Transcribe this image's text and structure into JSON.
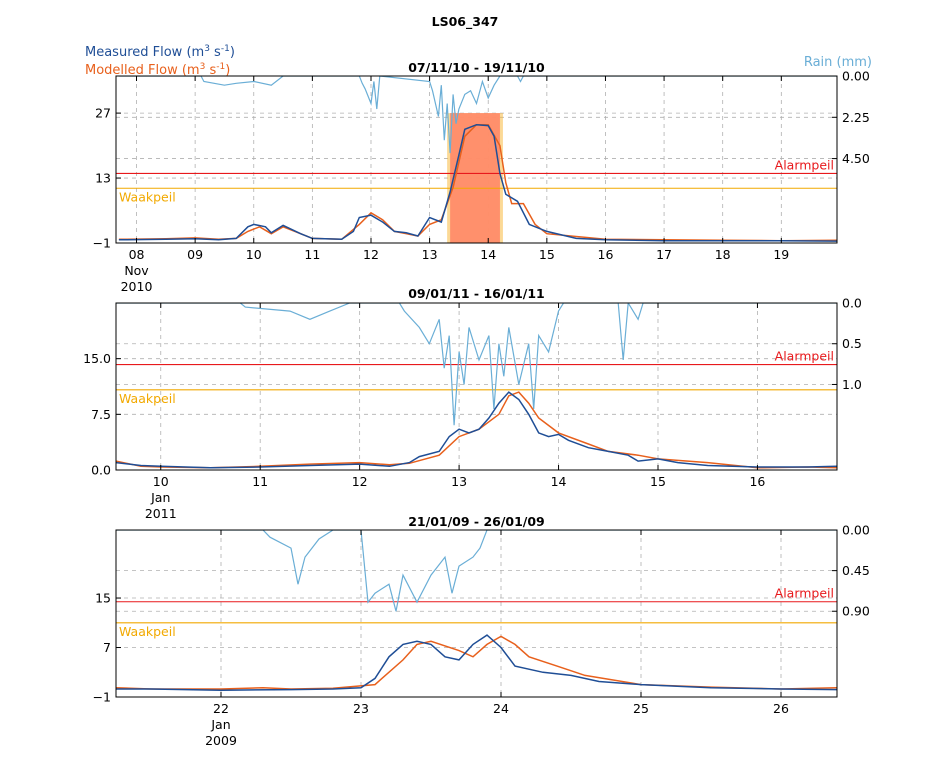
{
  "figure": {
    "title": "LS06_347",
    "legend": {
      "measured_prefix": "Measured Flow (m",
      "modelled_prefix": "Modelled Flow (m",
      "unit_mid": " s",
      "sup3": "3",
      "supneg1": "-1",
      "unit_end": ")",
      "rain": "Rain (mm)"
    },
    "colors": {
      "measured": "#1f4e96",
      "modelled": "#e8601c",
      "rain": "#6aaed6",
      "alarm": "#e8191c",
      "waak": "#f2a900",
      "event_fill": "#ff8c69",
      "event_edge": "#f7b940"
    }
  },
  "chart_data": [
    {
      "type": "line",
      "title": "07/11/10 - 19/11/10",
      "x_domain": [
        7.65,
        19.95
      ],
      "x_ticks": [
        {
          "v": 8,
          "l": "08"
        },
        {
          "v": 9,
          "l": "09"
        },
        {
          "v": 10,
          "l": "10"
        },
        {
          "v": 11,
          "l": "11"
        },
        {
          "v": 12,
          "l": "12"
        },
        {
          "v": 13,
          "l": "13"
        },
        {
          "v": 14,
          "l": "14"
        },
        {
          "v": 15,
          "l": "15"
        },
        {
          "v": 16,
          "l": "16"
        },
        {
          "v": 17,
          "l": "17"
        },
        {
          "v": 18,
          "l": "18"
        },
        {
          "v": 19,
          "l": "19"
        }
      ],
      "date_sub": [
        "Nov",
        "2010"
      ],
      "y_range": [
        -1,
        35
      ],
      "y_ticks": [
        -1,
        13,
        27
      ],
      "y_tick_labels": [
        "−1",
        "13",
        "27"
      ],
      "rain_range": [
        0,
        9.1
      ],
      "rain_ticks": [
        0,
        2.25,
        4.5
      ],
      "rain_tick_labels": [
        "0.00",
        "2.25",
        "4.50"
      ],
      "alarm": 14,
      "alarm_label": "Alarmpeil",
      "waak": 10.8,
      "waak_label": "Waakpeil",
      "event_band": [
        13.35,
        14.2
      ],
      "measured": [
        [
          7.7,
          -0.3
        ],
        [
          8.5,
          -0.2
        ],
        [
          9.0,
          -0.1
        ],
        [
          9.4,
          -0.3
        ],
        [
          9.7,
          0.0
        ],
        [
          9.9,
          2.5
        ],
        [
          10.0,
          3.0
        ],
        [
          10.2,
          2.5
        ],
        [
          10.3,
          1.2
        ],
        [
          10.5,
          2.8
        ],
        [
          10.8,
          1.0
        ],
        [
          11.0,
          0.0
        ],
        [
          11.5,
          -0.2
        ],
        [
          11.7,
          1.5
        ],
        [
          11.8,
          4.5
        ],
        [
          12.0,
          5.0
        ],
        [
          12.2,
          3.5
        ],
        [
          12.4,
          1.5
        ],
        [
          12.6,
          1.2
        ],
        [
          12.8,
          0.5
        ],
        [
          13.0,
          4.5
        ],
        [
          13.2,
          3.5
        ],
        [
          13.35,
          10.0
        ],
        [
          13.5,
          18.0
        ],
        [
          13.6,
          23.5
        ],
        [
          13.8,
          24.5
        ],
        [
          14.0,
          24.3
        ],
        [
          14.1,
          22.0
        ],
        [
          14.2,
          14.0
        ],
        [
          14.3,
          9.5
        ],
        [
          14.5,
          8.0
        ],
        [
          14.7,
          3.0
        ],
        [
          15.0,
          1.5
        ],
        [
          15.5,
          0.0
        ],
        [
          16.0,
          -0.3
        ],
        [
          17.0,
          -0.5
        ],
        [
          18.0,
          -0.5
        ],
        [
          19.0,
          -0.5
        ],
        [
          19.95,
          -0.6
        ]
      ],
      "modelled": [
        [
          7.7,
          -0.2
        ],
        [
          8.5,
          -0.1
        ],
        [
          9.0,
          0.1
        ],
        [
          9.4,
          -0.2
        ],
        [
          9.7,
          0.0
        ],
        [
          9.9,
          1.5
        ],
        [
          10.1,
          2.5
        ],
        [
          10.3,
          1.0
        ],
        [
          10.5,
          2.5
        ],
        [
          10.8,
          1.0
        ],
        [
          11.0,
          0.0
        ],
        [
          11.5,
          -0.2
        ],
        [
          11.8,
          3.0
        ],
        [
          12.0,
          5.5
        ],
        [
          12.2,
          4.0
        ],
        [
          12.4,
          1.5
        ],
        [
          12.6,
          1.0
        ],
        [
          12.8,
          0.5
        ],
        [
          13.0,
          3.0
        ],
        [
          13.2,
          4.0
        ],
        [
          13.4,
          11.0
        ],
        [
          13.6,
          22.0
        ],
        [
          13.8,
          24.5
        ],
        [
          14.0,
          24.5
        ],
        [
          14.2,
          20.0
        ],
        [
          14.3,
          12.0
        ],
        [
          14.4,
          7.5
        ],
        [
          14.6,
          7.5
        ],
        [
          14.8,
          3.0
        ],
        [
          15.0,
          1.0
        ],
        [
          16.0,
          -0.2
        ],
        [
          17.0,
          -0.3
        ],
        [
          18.0,
          -0.4
        ],
        [
          19.0,
          -0.5
        ],
        [
          19.95,
          -0.4
        ]
      ],
      "rain": [
        [
          7.7,
          0
        ],
        [
          9.1,
          0
        ],
        [
          9.15,
          0.3
        ],
        [
          9.5,
          0.5
        ],
        [
          9.7,
          0.4
        ],
        [
          10.0,
          0.3
        ],
        [
          10.3,
          0.5
        ],
        [
          10.5,
          0
        ],
        [
          11.8,
          0
        ],
        [
          11.85,
          0.4
        ],
        [
          11.9,
          0.7
        ],
        [
          12.0,
          1.5
        ],
        [
          12.05,
          0.3
        ],
        [
          12.1,
          1.8
        ],
        [
          12.15,
          0
        ],
        [
          13.0,
          0.3
        ],
        [
          13.05,
          0.8
        ],
        [
          13.15,
          2.2
        ],
        [
          13.2,
          0.5
        ],
        [
          13.25,
          3.5
        ],
        [
          13.3,
          1.5
        ],
        [
          13.35,
          4.2
        ],
        [
          13.4,
          1.0
        ],
        [
          13.45,
          2.6
        ],
        [
          13.5,
          1.8
        ],
        [
          13.6,
          1.0
        ],
        [
          13.7,
          0.8
        ],
        [
          13.8,
          1.5
        ],
        [
          13.9,
          0.3
        ],
        [
          14.0,
          1.2
        ],
        [
          14.1,
          0.5
        ],
        [
          14.2,
          0
        ],
        [
          14.5,
          0
        ],
        [
          14.55,
          0.3
        ],
        [
          14.6,
          0
        ],
        [
          19.95,
          0
        ]
      ]
    },
    {
      "type": "line",
      "title": "09/01/11 - 16/01/11",
      "x_domain": [
        9.55,
        16.8
      ],
      "x_ticks": [
        {
          "v": 10,
          "l": "10"
        },
        {
          "v": 11,
          "l": "11"
        },
        {
          "v": 12,
          "l": "12"
        },
        {
          "v": 13,
          "l": "13"
        },
        {
          "v": 14,
          "l": "14"
        },
        {
          "v": 15,
          "l": "15"
        },
        {
          "v": 16,
          "l": "16"
        }
      ],
      "date_sub": [
        "Jan",
        "2011"
      ],
      "y_range": [
        0,
        22.5
      ],
      "y_ticks": [
        0,
        7.5,
        15
      ],
      "y_tick_labels": [
        "0.0",
        "7.5",
        "15.0"
      ],
      "rain_range": [
        0,
        2.05
      ],
      "rain_ticks": [
        0,
        0.5,
        1.0
      ],
      "rain_tick_labels": [
        "0.0",
        "0.5",
        "1.0"
      ],
      "alarm": 14.2,
      "alarm_label": "Alarmpeil",
      "waak": 10.8,
      "waak_label": "Waakpeil",
      "measured": [
        [
          9.55,
          1.0
        ],
        [
          9.8,
          0.6
        ],
        [
          10.0,
          0.5
        ],
        [
          10.5,
          0.3
        ],
        [
          11.0,
          0.4
        ],
        [
          11.5,
          0.6
        ],
        [
          12.0,
          0.8
        ],
        [
          12.3,
          0.5
        ],
        [
          12.5,
          1.0
        ],
        [
          12.6,
          1.8
        ],
        [
          12.8,
          2.5
        ],
        [
          12.9,
          4.5
        ],
        [
          13.0,
          5.5
        ],
        [
          13.1,
          5.0
        ],
        [
          13.2,
          5.5
        ],
        [
          13.3,
          7.0
        ],
        [
          13.4,
          9.0
        ],
        [
          13.5,
          10.5
        ],
        [
          13.6,
          9.5
        ],
        [
          13.7,
          7.5
        ],
        [
          13.8,
          5.0
        ],
        [
          13.9,
          4.5
        ],
        [
          14.0,
          4.8
        ],
        [
          14.1,
          4.0
        ],
        [
          14.3,
          3.0
        ],
        [
          14.5,
          2.5
        ],
        [
          14.7,
          2.0
        ],
        [
          14.8,
          1.2
        ],
        [
          15.0,
          1.5
        ],
        [
          15.2,
          1.0
        ],
        [
          15.5,
          0.6
        ],
        [
          16.0,
          0.4
        ],
        [
          16.5,
          0.4
        ],
        [
          16.8,
          0.5
        ]
      ],
      "modelled": [
        [
          9.55,
          1.2
        ],
        [
          9.8,
          0.5
        ],
        [
          10.0,
          0.4
        ],
        [
          10.5,
          0.3
        ],
        [
          11.0,
          0.5
        ],
        [
          11.5,
          0.8
        ],
        [
          12.0,
          1.0
        ],
        [
          12.3,
          0.7
        ],
        [
          12.5,
          0.9
        ],
        [
          12.8,
          2.0
        ],
        [
          13.0,
          4.5
        ],
        [
          13.2,
          5.5
        ],
        [
          13.4,
          7.5
        ],
        [
          13.5,
          10.0
        ],
        [
          13.6,
          10.5
        ],
        [
          13.7,
          9.0
        ],
        [
          13.8,
          7.0
        ],
        [
          14.0,
          5.0
        ],
        [
          14.3,
          3.5
        ],
        [
          14.5,
          2.5
        ],
        [
          14.8,
          2.0
        ],
        [
          15.0,
          1.5
        ],
        [
          15.5,
          1.0
        ],
        [
          16.0,
          0.3
        ],
        [
          16.5,
          0.4
        ],
        [
          16.8,
          0.3
        ]
      ],
      "rain": [
        [
          9.55,
          0
        ],
        [
          10.8,
          0
        ],
        [
          10.85,
          0.05
        ],
        [
          11.3,
          0.1
        ],
        [
          11.5,
          0.2
        ],
        [
          11.7,
          0.1
        ],
        [
          11.9,
          0
        ],
        [
          12.4,
          0
        ],
        [
          12.45,
          0.1
        ],
        [
          12.6,
          0.3
        ],
        [
          12.7,
          0.5
        ],
        [
          12.8,
          0.2
        ],
        [
          12.85,
          0.8
        ],
        [
          12.9,
          0.4
        ],
        [
          12.95,
          1.5
        ],
        [
          13.0,
          0.6
        ],
        [
          13.05,
          1.0
        ],
        [
          13.1,
          0.3
        ],
        [
          13.2,
          0.7
        ],
        [
          13.3,
          0.4
        ],
        [
          13.35,
          1.3
        ],
        [
          13.4,
          0.5
        ],
        [
          13.45,
          0.9
        ],
        [
          13.5,
          0.3
        ],
        [
          13.6,
          1.0
        ],
        [
          13.7,
          0.5
        ],
        [
          13.75,
          1.3
        ],
        [
          13.8,
          0.4
        ],
        [
          13.9,
          0.6
        ],
        [
          14.0,
          0.1
        ],
        [
          14.05,
          0
        ],
        [
          14.6,
          0
        ],
        [
          14.65,
          0.7
        ],
        [
          14.7,
          0
        ],
        [
          14.8,
          0.2
        ],
        [
          14.85,
          0
        ],
        [
          16.8,
          0
        ]
      ]
    },
    {
      "type": "line",
      "title": "21/01/09 - 26/01/09",
      "x_domain": [
        21.25,
        26.4
      ],
      "x_ticks": [
        {
          "v": 22,
          "l": "22"
        },
        {
          "v": 23,
          "l": "23"
        },
        {
          "v": 24,
          "l": "24"
        },
        {
          "v": 25,
          "l": "25"
        },
        {
          "v": 26,
          "l": "26"
        }
      ],
      "date_sub": [
        "Jan",
        "2009"
      ],
      "y_range": [
        -1,
        26
      ],
      "y_ticks": [
        -1,
        7,
        15
      ],
      "y_tick_labels": [
        "−1",
        "7",
        "15"
      ],
      "rain_range": [
        0,
        1.85
      ],
      "rain_ticks": [
        0,
        0.45,
        0.9
      ],
      "rain_tick_labels": [
        "0.00",
        "0.45",
        "0.90"
      ],
      "alarm": 14.4,
      "alarm_label": "Alarmpeil",
      "waak": 11.0,
      "waak_label": "Waakpeil",
      "measured": [
        [
          21.25,
          0.3
        ],
        [
          21.5,
          0.3
        ],
        [
          22.0,
          0.1
        ],
        [
          22.5,
          0.2
        ],
        [
          22.8,
          0.3
        ],
        [
          23.0,
          0.5
        ],
        [
          23.1,
          2.0
        ],
        [
          23.2,
          5.5
        ],
        [
          23.3,
          7.5
        ],
        [
          23.4,
          8.0
        ],
        [
          23.5,
          7.5
        ],
        [
          23.6,
          5.5
        ],
        [
          23.7,
          5.0
        ],
        [
          23.8,
          7.5
        ],
        [
          23.9,
          9.0
        ],
        [
          24.0,
          7.0
        ],
        [
          24.1,
          4.0
        ],
        [
          24.3,
          3.0
        ],
        [
          24.5,
          2.5
        ],
        [
          24.7,
          1.5
        ],
        [
          25.0,
          1.0
        ],
        [
          25.5,
          0.5
        ],
        [
          26.0,
          0.3
        ],
        [
          26.4,
          0.2
        ]
      ],
      "modelled": [
        [
          21.25,
          0.5
        ],
        [
          21.5,
          0.3
        ],
        [
          22.0,
          0.3
        ],
        [
          22.3,
          0.5
        ],
        [
          22.5,
          0.3
        ],
        [
          22.8,
          0.4
        ],
        [
          23.1,
          1.0
        ],
        [
          23.3,
          5.0
        ],
        [
          23.4,
          7.5
        ],
        [
          23.5,
          8.0
        ],
        [
          23.7,
          6.5
        ],
        [
          23.8,
          5.5
        ],
        [
          23.9,
          7.5
        ],
        [
          24.0,
          8.8
        ],
        [
          24.1,
          7.5
        ],
        [
          24.2,
          5.5
        ],
        [
          24.4,
          4.0
        ],
        [
          24.6,
          2.5
        ],
        [
          25.0,
          1.0
        ],
        [
          25.5,
          0.6
        ],
        [
          26.0,
          0.3
        ],
        [
          26.4,
          0.5
        ]
      ],
      "rain": [
        [
          21.25,
          0
        ],
        [
          22.3,
          0
        ],
        [
          22.35,
          0.08
        ],
        [
          22.5,
          0.2
        ],
        [
          22.55,
          0.6
        ],
        [
          22.6,
          0.3
        ],
        [
          22.7,
          0.1
        ],
        [
          22.8,
          0
        ],
        [
          23.0,
          0
        ],
        [
          23.05,
          0.8
        ],
        [
          23.1,
          0.7
        ],
        [
          23.2,
          0.6
        ],
        [
          23.25,
          0.9
        ],
        [
          23.3,
          0.5
        ],
        [
          23.4,
          0.8
        ],
        [
          23.5,
          0.5
        ],
        [
          23.6,
          0.3
        ],
        [
          23.65,
          0.7
        ],
        [
          23.7,
          0.4
        ],
        [
          23.8,
          0.3
        ],
        [
          23.85,
          0.2
        ],
        [
          23.9,
          0
        ],
        [
          26.4,
          0
        ]
      ]
    }
  ]
}
